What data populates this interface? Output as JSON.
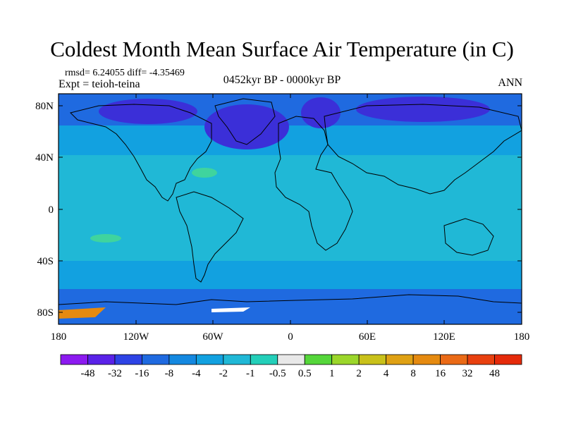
{
  "header": {
    "title": "Coldest Month Mean Surface Air Temperature (in C)",
    "stats": "rmsd= 6.24055 diff= -4.35469",
    "experiment": "Expt = teioh-teina",
    "period": "0452kyr BP - 0000kyr BP",
    "season": "ANN"
  },
  "map": {
    "lat_ticks": [
      "80N",
      "40N",
      "0",
      "40S",
      "80S"
    ],
    "lon_ticks": [
      "180",
      "120W",
      "60W",
      "0",
      "60E",
      "120E",
      "180"
    ],
    "field_colors": {
      "tropics": "#20b8d6",
      "mid_lat": "#12a1e0",
      "high_lat": "#1f6ae0",
      "polar_dark": "#3b2fd8",
      "warm_spot": "#3fd49e",
      "antarctic_hot": "#e58a10"
    }
  },
  "legend": {
    "labels": [
      "-48",
      "-32",
      "-16",
      "-8",
      "-4",
      "-2",
      "-1",
      "-0.5",
      "0.5",
      "1",
      "2",
      "4",
      "8",
      "16",
      "32",
      "48"
    ],
    "colors": [
      "#8c1af0",
      "#5a22e8",
      "#2d43e5",
      "#1f6ae0",
      "#1488e0",
      "#12a1e0",
      "#20b8d6",
      "#23cfb9",
      "#e8e8e8",
      "#55d63a",
      "#9bd62a",
      "#c9c11a",
      "#dfa114",
      "#e58a10",
      "#ea6a16",
      "#e8400f",
      "#e52a0a"
    ]
  }
}
